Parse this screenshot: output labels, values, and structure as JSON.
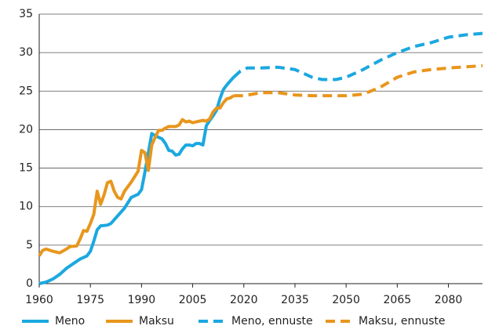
{
  "chart_data": {
    "type": "line",
    "xlim": [
      1960,
      2090
    ],
    "xticks": [
      1960,
      1975,
      1990,
      2005,
      2020,
      2035,
      2050,
      2065,
      2080
    ],
    "ylim": [
      0,
      35
    ],
    "yticks": [
      0,
      5,
      10,
      15,
      20,
      25,
      30,
      35
    ],
    "grid": true,
    "legend": "bottom",
    "series": [
      {
        "name": "Meno",
        "color": "#1ba8e0",
        "dashed": false,
        "x": [
          1960,
          1962,
          1964,
          1966,
          1968,
          1970,
          1972,
          1974,
          1975,
          1976,
          1977,
          1978,
          1980,
          1981,
          1983,
          1985,
          1987,
          1989,
          1990,
          1991,
          1992,
          1993,
          1994,
          1996,
          1997,
          1998,
          1999,
          2000,
          2001,
          2002,
          2003,
          2004,
          2005,
          2006,
          2007,
          2008,
          2009,
          2010,
          2011,
          2012,
          2013,
          2014,
          2015,
          2016,
          2017
        ],
        "values": [
          0,
          0.2,
          0.6,
          1.2,
          2.0,
          2.6,
          3.2,
          3.6,
          4.2,
          5.5,
          7.0,
          7.5,
          7.6,
          7.8,
          8.8,
          9.8,
          11.2,
          11.6,
          12.2,
          14.5,
          17.0,
          19.5,
          19.2,
          18.8,
          18.2,
          17.3,
          17.2,
          16.7,
          16.8,
          17.5,
          18.0,
          18.0,
          17.9,
          18.2,
          18.2,
          18.0,
          20.5,
          21.2,
          21.8,
          22.5,
          24.0,
          25.2,
          25.8,
          26.3,
          26.8
        ]
      },
      {
        "name": "Maksu",
        "color": "#e8961c",
        "dashed": false,
        "x": [
          1960,
          1961,
          1962,
          1964,
          1966,
          1968,
          1969,
          1971,
          1972,
          1973,
          1974,
          1975,
          1976,
          1977,
          1978,
          1979,
          1980,
          1981,
          1982,
          1983,
          1984,
          1985,
          1987,
          1989,
          1990,
          1991,
          1992,
          1993,
          1994,
          1995,
          1996,
          1997,
          1998,
          1999,
          2000,
          2001,
          2002,
          2003,
          2004,
          2005,
          2006,
          2007,
          2008,
          2009,
          2010,
          2011,
          2012,
          2013,
          2014,
          2015,
          2016,
          2017
        ],
        "values": [
          3.6,
          4.3,
          4.5,
          4.2,
          4.0,
          4.5,
          4.8,
          4.9,
          5.8,
          6.9,
          6.8,
          7.8,
          9.0,
          12.0,
          10.3,
          11.5,
          13.1,
          13.3,
          12.0,
          11.2,
          11.0,
          12.0,
          13.2,
          14.6,
          17.3,
          17.0,
          14.7,
          18.0,
          19.0,
          19.9,
          19.9,
          20.2,
          20.4,
          20.4,
          20.4,
          20.6,
          21.3,
          21.0,
          21.1,
          20.9,
          21.0,
          21.1,
          21.2,
          21.1,
          21.4,
          22.3,
          22.8,
          22.8,
          23.5,
          24.0,
          24.1,
          24.4
        ]
      },
      {
        "name": "Meno, ennuste",
        "color": "#1ba8e0",
        "dashed": true,
        "x": [
          2017,
          2019,
          2021,
          2025,
          2030,
          2035,
          2040,
          2043,
          2047,
          2050,
          2055,
          2060,
          2065,
          2070,
          2075,
          2080,
          2085,
          2090
        ],
        "values": [
          26.8,
          27.6,
          28.0,
          28.0,
          28.1,
          27.8,
          26.8,
          26.5,
          26.5,
          26.8,
          27.8,
          29.0,
          30.0,
          30.8,
          31.3,
          32.0,
          32.3,
          32.5
        ]
      },
      {
        "name": "Maksu, ennuste",
        "color": "#e8961c",
        "dashed": true,
        "x": [
          2017,
          2020,
          2025,
          2030,
          2035,
          2040,
          2050,
          2055,
          2060,
          2065,
          2070,
          2075,
          2080,
          2090
        ],
        "values": [
          24.4,
          24.4,
          24.8,
          24.8,
          24.5,
          24.4,
          24.4,
          24.6,
          25.5,
          26.8,
          27.5,
          27.8,
          28.0,
          28.3
        ]
      }
    ]
  }
}
